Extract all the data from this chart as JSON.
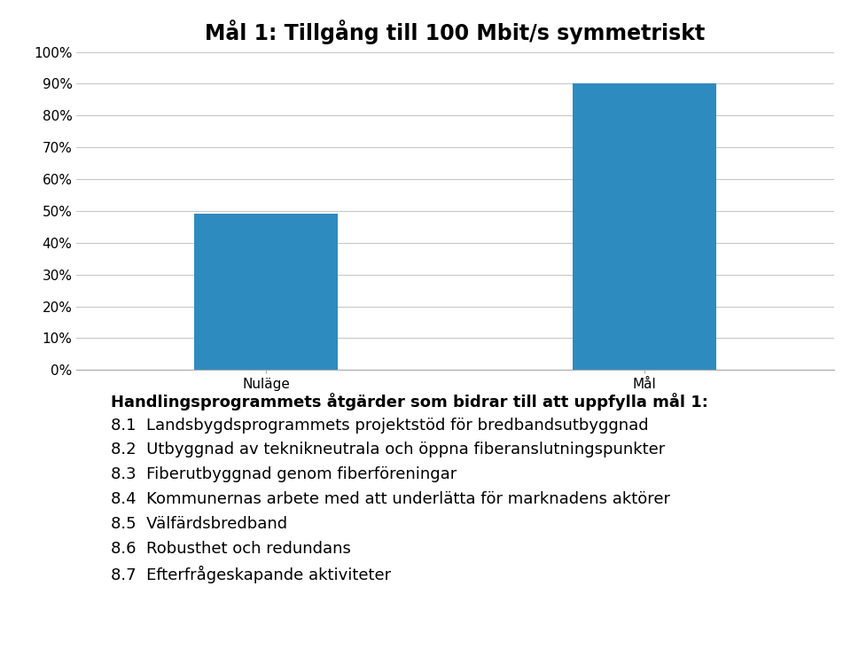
{
  "title": "Mål 1: Tillgång till 100 Mbit/s symmetriskt",
  "categories": [
    "Nuläge",
    "Mål"
  ],
  "values": [
    49,
    90
  ],
  "bar_color": "#2E8BC0",
  "ylim": [
    0,
    100
  ],
  "yticks": [
    0,
    10,
    20,
    30,
    40,
    50,
    60,
    70,
    80,
    90,
    100
  ],
  "ytick_labels": [
    "0%",
    "10%",
    "20%",
    "30%",
    "40%",
    "50%",
    "60%",
    "70%",
    "80%",
    "90%",
    "100%"
  ],
  "background_color": "#ffffff",
  "grid_color": "#c8c8c8",
  "title_fontsize": 17,
  "tick_fontsize": 11,
  "xlabel_fontsize": 11,
  "annotation_bold": "Handlingsprogrammets åtgärder som bidrar till att uppfylla mål 1:",
  "annotation_items": [
    "8.1  Landsbygdsprogrammets projektstöd för bredbandsutbyggnad",
    "8.2  Utbyggnad av teknikneutrala och öppna fiberanslutningspunkter",
    "8.3  Fiberutbyggnad genom fiberföreningar",
    "8.4  Kommunernas arbete med att underlätta för marknadens aktörer",
    "8.5  Välfärdsbredband",
    "8.6  Robusthet och redundans",
    "8.7  Efterfrågeskapande aktiviteter"
  ],
  "annotation_bold_fontsize": 13,
  "annotation_item_fontsize": 13
}
